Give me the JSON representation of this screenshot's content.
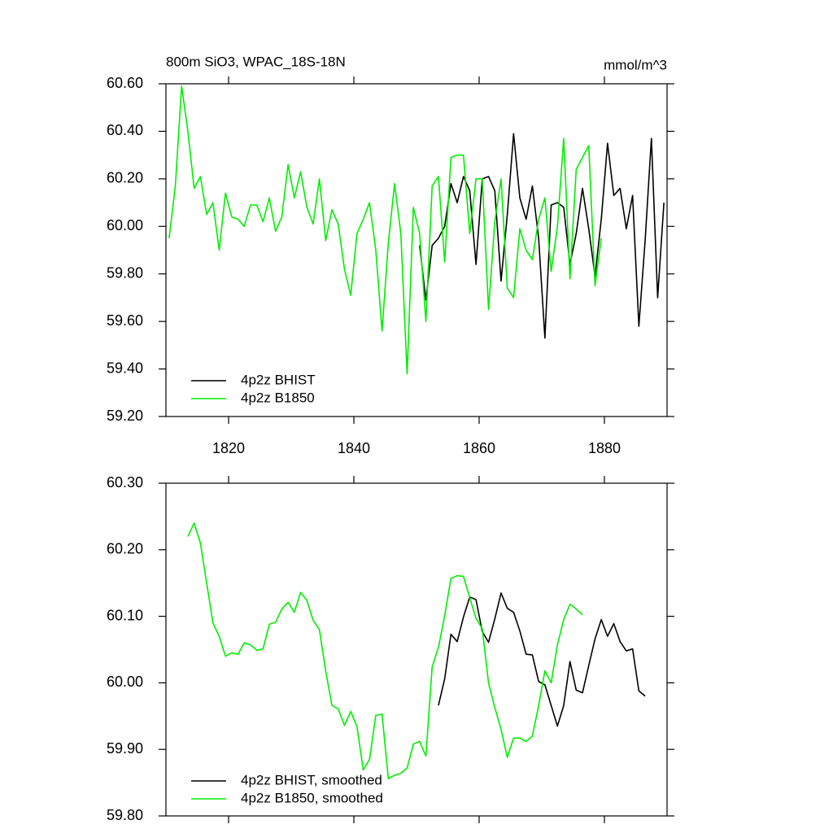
{
  "chart_data": [
    {
      "type": "line",
      "title": "800m SiO3, WPAC_18S-18N",
      "units": "mmol/m^3",
      "xlim": [
        1810,
        1890
      ],
      "xticks": [
        1820,
        1840,
        1860,
        1880
      ],
      "ylim": [
        59.2,
        60.6
      ],
      "yticks": [
        {
          "value": 59.2,
          "label": "59.20"
        },
        {
          "value": 59.4,
          "label": "59.40"
        },
        {
          "value": 59.6,
          "label": "59.60"
        },
        {
          "value": 59.8,
          "label": "59.80"
        },
        {
          "value": 60.0,
          "label": "60.00"
        },
        {
          "value": 60.2,
          "label": "60.20"
        },
        {
          "value": 60.4,
          "label": "60.40"
        },
        {
          "value": 60.6,
          "label": "60.60"
        }
      ],
      "series": [
        {
          "name": "4p2z BHIST",
          "color": "#000000",
          "x": [
            1850.5,
            1851.5,
            1852.5,
            1853.5,
            1854.5,
            1855.5,
            1856.5,
            1857.5,
            1858.5,
            1859.5,
            1860.5,
            1861.5,
            1862.5,
            1863.5,
            1864.5,
            1865.5,
            1866.5,
            1867.5,
            1868.5,
            1869.5,
            1870.5,
            1871.5,
            1872.5,
            1873.5,
            1874.5,
            1875.5,
            1876.5,
            1877.5,
            1878.5,
            1879.5,
            1880.5,
            1881.5,
            1882.5,
            1883.5,
            1884.5,
            1885.5,
            1886.5,
            1887.5,
            1888.5,
            1889.5
          ],
          "values": [
            59.92,
            59.69,
            59.92,
            59.95,
            60.0,
            60.18,
            60.1,
            60.21,
            60.15,
            59.84,
            60.2,
            60.21,
            60.15,
            59.77,
            60.05,
            60.39,
            60.12,
            60.03,
            60.17,
            59.95,
            59.53,
            60.09,
            60.1,
            60.08,
            59.84,
            59.97,
            60.16,
            59.99,
            59.79,
            60.03,
            60.35,
            60.13,
            60.16,
            59.99,
            60.13,
            59.58,
            59.94,
            60.37,
            59.7,
            60.1
          ]
        },
        {
          "name": "4p2z B1850",
          "color": "#00ee00",
          "x": [
            1810.5,
            1811.5,
            1812.5,
            1813.5,
            1814.5,
            1815.5,
            1816.5,
            1817.5,
            1818.5,
            1819.5,
            1820.5,
            1821.5,
            1822.5,
            1823.5,
            1824.5,
            1825.5,
            1826.5,
            1827.5,
            1828.5,
            1829.5,
            1830.5,
            1831.5,
            1832.5,
            1833.5,
            1834.5,
            1835.5,
            1836.5,
            1837.5,
            1838.5,
            1839.5,
            1840.5,
            1841.5,
            1842.5,
            1843.5,
            1844.5,
            1845.5,
            1846.5,
            1847.5,
            1848.5,
            1849.5,
            1850.5,
            1851.5,
            1852.5,
            1853.5,
            1854.5,
            1855.5,
            1856.5,
            1857.5,
            1858.5,
            1859.5,
            1860.5,
            1861.5,
            1862.5,
            1863.5,
            1864.5,
            1865.5,
            1866.5,
            1867.5,
            1868.5,
            1869.5,
            1870.5,
            1871.5,
            1872.5,
            1873.5,
            1874.5,
            1875.5,
            1876.5,
            1877.5,
            1878.5,
            1879.5
          ],
          "values": [
            59.95,
            60.17,
            60.59,
            60.4,
            60.16,
            60.21,
            60.05,
            60.1,
            59.9,
            60.14,
            60.04,
            60.03,
            60.0,
            60.09,
            60.09,
            60.02,
            60.12,
            59.98,
            60.04,
            60.26,
            60.12,
            60.23,
            60.08,
            60.01,
            60.2,
            59.94,
            60.07,
            60.01,
            59.82,
            59.71,
            59.97,
            60.03,
            60.1,
            59.9,
            59.56,
            59.93,
            60.18,
            59.97,
            59.38,
            60.08,
            59.97,
            59.6,
            60.17,
            60.21,
            59.85,
            60.29,
            60.3,
            60.3,
            59.97,
            60.2,
            60.2,
            59.65,
            60.02,
            60.2,
            59.74,
            59.7,
            59.99,
            59.9,
            59.86,
            60.03,
            60.12,
            59.81,
            60.0,
            60.37,
            59.78,
            60.24,
            60.29,
            60.34,
            59.75,
            59.95
          ]
        }
      ]
    },
    {
      "type": "line",
      "xlim": [
        1810,
        1890
      ],
      "xticks": [
        1820,
        1840,
        1860,
        1880
      ],
      "ylim": [
        59.8,
        60.3
      ],
      "yticks": [
        {
          "value": 59.8,
          "label": "59.80"
        },
        {
          "value": 59.9,
          "label": "59.90"
        },
        {
          "value": 60.0,
          "label": "60.00"
        },
        {
          "value": 60.1,
          "label": "60.10"
        },
        {
          "value": 60.2,
          "label": "60.20"
        },
        {
          "value": 60.3,
          "label": "60.30"
        }
      ],
      "series": [
        {
          "name": "4p2z BHIST, smoothed",
          "color": "#000000",
          "x": [
            1853.5,
            1854.5,
            1855.5,
            1856.5,
            1857.5,
            1858.5,
            1859.5,
            1860.5,
            1861.5,
            1862.5,
            1863.5,
            1864.5,
            1865.5,
            1866.5,
            1867.5,
            1868.5,
            1869.5,
            1870.5,
            1871.5,
            1872.5,
            1873.5,
            1874.5,
            1875.5,
            1876.5,
            1877.5,
            1878.5,
            1879.5,
            1880.5,
            1881.5,
            1882.5,
            1883.5,
            1884.5,
            1885.5,
            1886.5
          ],
          "values": [
            59.966,
            60.006,
            60.073,
            60.062,
            60.099,
            60.129,
            60.125,
            60.077,
            60.061,
            60.096,
            60.135,
            60.112,
            60.106,
            60.078,
            60.043,
            60.042,
            60.002,
            59.997,
            59.966,
            59.935,
            59.966,
            60.032,
            59.989,
            59.985,
            60.026,
            60.066,
            60.095,
            60.07,
            60.089,
            60.062,
            60.048,
            60.051,
            59.988,
            59.98
          ]
        },
        {
          "name": "4p2z B1850, smoothed",
          "color": "#00ee00",
          "x": [
            1813.5,
            1814.5,
            1815.5,
            1816.5,
            1817.5,
            1818.5,
            1819.5,
            1820.5,
            1821.5,
            1822.5,
            1823.5,
            1824.5,
            1825.5,
            1826.5,
            1827.5,
            1828.5,
            1829.5,
            1830.5,
            1831.5,
            1832.5,
            1833.5,
            1834.5,
            1835.5,
            1836.5,
            1837.5,
            1838.5,
            1839.5,
            1840.5,
            1841.5,
            1842.5,
            1843.5,
            1844.5,
            1845.5,
            1846.5,
            1847.5,
            1848.5,
            1849.5,
            1850.5,
            1851.5,
            1852.5,
            1853.5,
            1854.5,
            1855.5,
            1856.5,
            1857.5,
            1858.5,
            1859.5,
            1860.5,
            1861.5,
            1862.5,
            1863.5,
            1864.5,
            1865.5,
            1866.5,
            1867.5,
            1868.5,
            1869.5,
            1870.5,
            1871.5,
            1872.5,
            1873.5,
            1874.5,
            1875.5,
            1876.5
          ],
          "values": [
            60.22,
            60.24,
            60.21,
            60.15,
            60.09,
            60.07,
            60.04,
            60.045,
            60.043,
            60.06,
            60.057,
            60.049,
            60.051,
            60.088,
            60.091,
            60.111,
            60.121,
            60.106,
            60.136,
            60.124,
            60.094,
            60.08,
            60.018,
            59.966,
            59.961,
            59.936,
            59.957,
            59.934,
            59.869,
            59.885,
            59.951,
            59.953,
            59.856,
            59.861,
            59.864,
            59.872,
            59.908,
            59.912,
            59.89,
            60.024,
            60.053,
            60.101,
            60.157,
            60.161,
            60.16,
            60.128,
            60.097,
            60.081,
            60.0,
            59.963,
            59.93,
            59.888,
            59.917,
            59.917,
            59.912,
            59.92,
            59.966,
            60.018,
            60.0,
            60.057,
            60.095,
            60.118,
            60.111,
            60.102
          ]
        }
      ]
    }
  ]
}
